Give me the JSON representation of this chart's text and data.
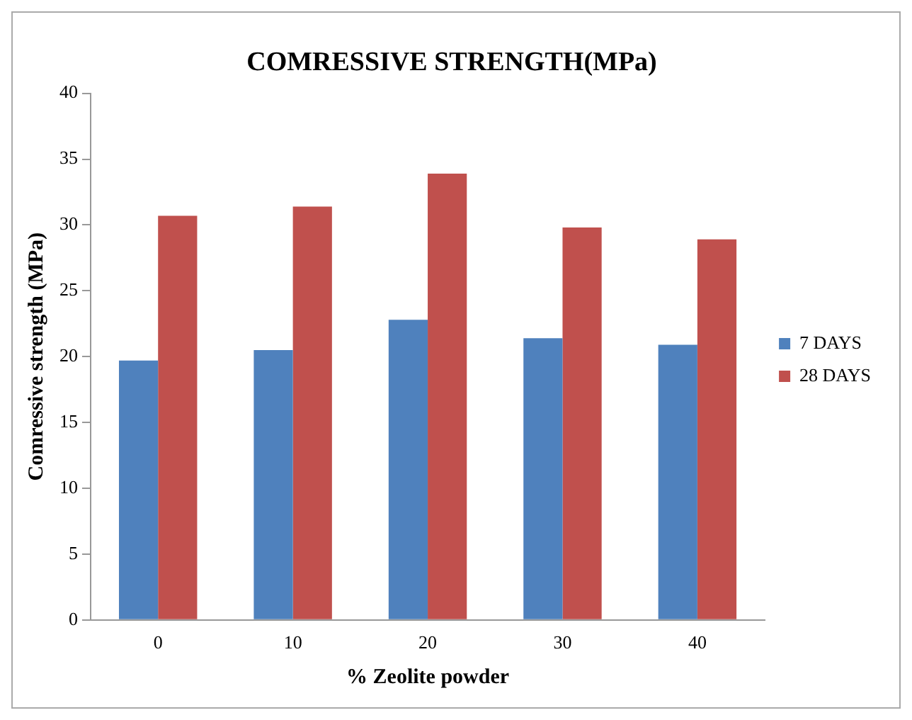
{
  "chart_data": {
    "type": "bar",
    "title": "COMRESSIVE STRENGTH(MPa)",
    "xlabel": "% Zeolite powder",
    "ylabel": "Comressive strength (MPa)",
    "categories": [
      "0",
      "10",
      "20",
      "30",
      "40"
    ],
    "series": [
      {
        "name": "7 DAYS",
        "color": "#4f81bd",
        "values": [
          19.7,
          20.5,
          22.8,
          21.4,
          20.9
        ]
      },
      {
        "name": "28 DAYS",
        "color": "#c0504d",
        "values": [
          30.7,
          31.4,
          33.9,
          29.8,
          28.9
        ]
      }
    ],
    "ylim": [
      0,
      40
    ],
    "yticks": [
      0,
      5,
      10,
      15,
      20,
      25,
      30,
      35,
      40
    ],
    "grid": false,
    "legend": "right"
  }
}
